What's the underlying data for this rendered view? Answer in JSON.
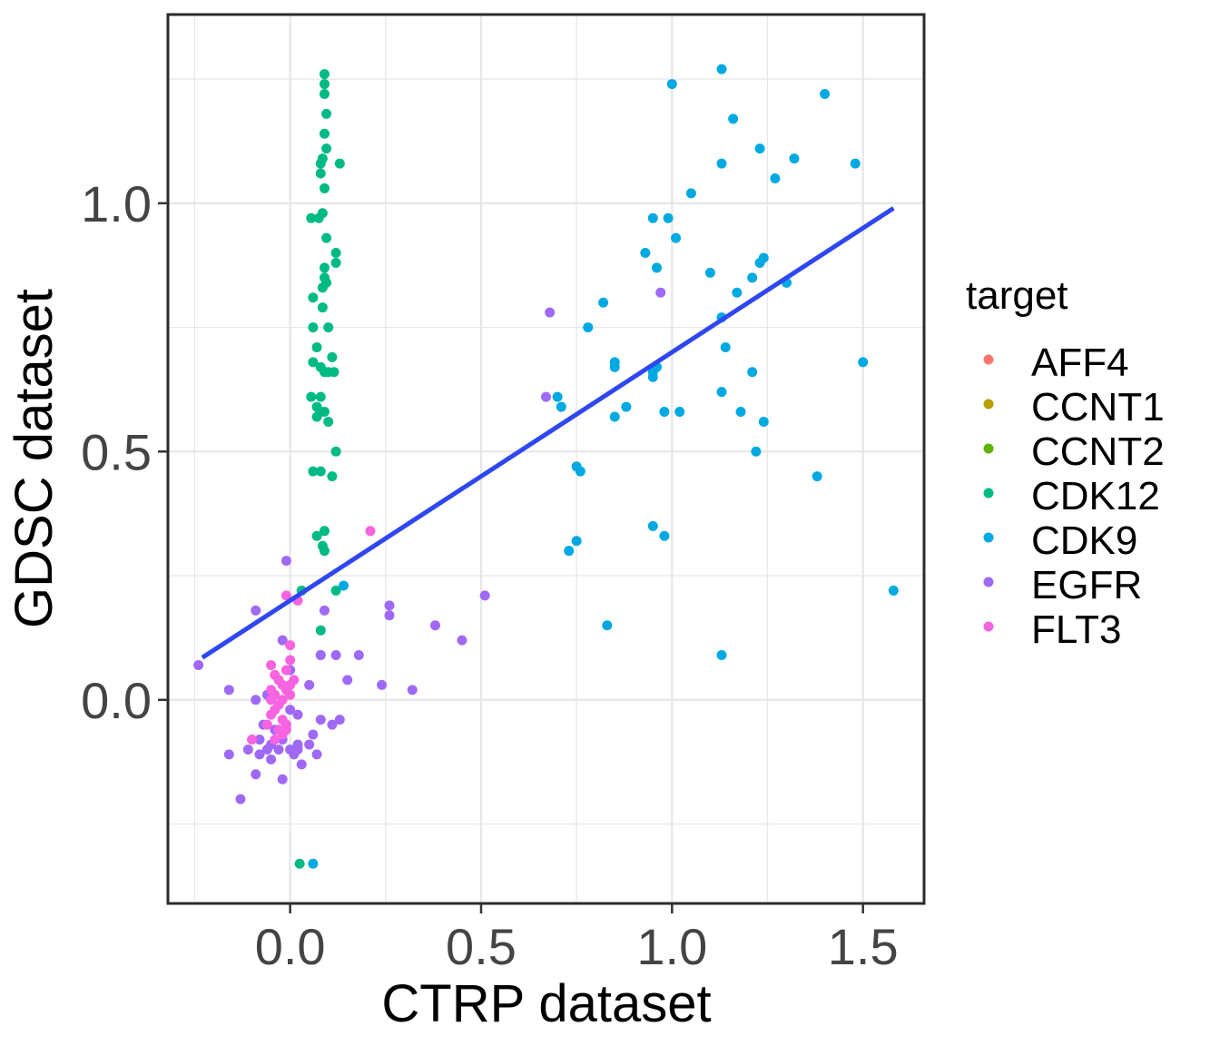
{
  "chart_data": {
    "type": "scatter",
    "xlabel": "CTRP dataset",
    "ylabel": "GDSC dataset",
    "xlim": [
      -0.32,
      1.66
    ],
    "ylim": [
      -0.41,
      1.38
    ],
    "x_ticks": [
      0.0,
      0.5,
      1.0,
      1.5
    ],
    "x_tick_labels": [
      "0.0",
      "0.5",
      "1.0",
      "1.5"
    ],
    "y_ticks": [
      0.0,
      0.5,
      1.0
    ],
    "y_tick_labels": [
      "0.0",
      "0.5",
      "1.0"
    ],
    "grid": true,
    "legend_position": "right",
    "legend_title": "target",
    "trend_line": {
      "color": "#2E47F0",
      "x": [
        -0.23,
        1.58
      ],
      "y": [
        0.085,
        0.99
      ]
    },
    "series": [
      {
        "name": "AFF4",
        "color": "#F8766D",
        "points": []
      },
      {
        "name": "CCNT1",
        "color": "#B79F00",
        "points": []
      },
      {
        "name": "CCNT2",
        "color": "#5FB300",
        "points": []
      },
      {
        "name": "CDK12",
        "color": "#00BA86",
        "points": [
          [
            0.09,
            1.26
          ],
          [
            0.09,
            1.24
          ],
          [
            0.09,
            1.22
          ],
          [
            0.095,
            1.18
          ],
          [
            0.09,
            1.14
          ],
          [
            0.095,
            1.11
          ],
          [
            0.085,
            1.09
          ],
          [
            0.08,
            1.08
          ],
          [
            0.13,
            1.08
          ],
          [
            0.08,
            1.06
          ],
          [
            0.09,
            1.03
          ],
          [
            0.085,
            0.98
          ],
          [
            0.055,
            0.97
          ],
          [
            0.075,
            0.97
          ],
          [
            0.095,
            0.93
          ],
          [
            0.12,
            0.9
          ],
          [
            0.12,
            0.88
          ],
          [
            0.09,
            0.87
          ],
          [
            0.09,
            0.85
          ],
          [
            0.095,
            0.84
          ],
          [
            0.085,
            0.83
          ],
          [
            0.06,
            0.81
          ],
          [
            0.085,
            0.79
          ],
          [
            0.1,
            0.75
          ],
          [
            0.06,
            0.75
          ],
          [
            0.07,
            0.71
          ],
          [
            0.11,
            0.69
          ],
          [
            0.06,
            0.68
          ],
          [
            0.08,
            0.67
          ],
          [
            0.09,
            0.66
          ],
          [
            0.1,
            0.66
          ],
          [
            0.115,
            0.66
          ],
          [
            0.055,
            0.61
          ],
          [
            0.08,
            0.61
          ],
          [
            0.07,
            0.59
          ],
          [
            0.08,
            0.58
          ],
          [
            0.09,
            0.58
          ],
          [
            0.07,
            0.57
          ],
          [
            0.1,
            0.56
          ],
          [
            0.12,
            0.5
          ],
          [
            0.06,
            0.46
          ],
          [
            0.08,
            0.46
          ],
          [
            0.11,
            0.45
          ],
          [
            0.09,
            0.34
          ],
          [
            0.07,
            0.33
          ],
          [
            0.085,
            0.31
          ],
          [
            0.09,
            0.3
          ],
          [
            0.03,
            0.22
          ],
          [
            0.12,
            0.22
          ],
          [
            0.08,
            0.14
          ],
          [
            0.08,
            0.09
          ],
          [
            0.025,
            -0.33
          ]
        ]
      },
      {
        "name": "CDK9",
        "color": "#00A9E2",
        "points": [
          [
            1.13,
            1.27
          ],
          [
            1.0,
            1.24
          ],
          [
            1.4,
            1.22
          ],
          [
            1.16,
            1.17
          ],
          [
            1.23,
            1.11
          ],
          [
            1.13,
            1.08
          ],
          [
            1.32,
            1.09
          ],
          [
            1.48,
            1.08
          ],
          [
            1.27,
            1.05
          ],
          [
            1.05,
            1.02
          ],
          [
            0.95,
            0.97
          ],
          [
            0.99,
            0.97
          ],
          [
            1.01,
            0.93
          ],
          [
            0.93,
            0.9
          ],
          [
            1.24,
            0.89
          ],
          [
            1.23,
            0.88
          ],
          [
            0.96,
            0.87
          ],
          [
            1.1,
            0.86
          ],
          [
            1.21,
            0.85
          ],
          [
            1.3,
            0.84
          ],
          [
            1.17,
            0.82
          ],
          [
            0.82,
            0.8
          ],
          [
            1.13,
            0.77
          ],
          [
            0.78,
            0.75
          ],
          [
            1.14,
            0.71
          ],
          [
            0.85,
            0.68
          ],
          [
            0.85,
            0.67
          ],
          [
            1.5,
            0.68
          ],
          [
            0.96,
            0.67
          ],
          [
            0.95,
            0.66
          ],
          [
            0.95,
            0.65
          ],
          [
            1.21,
            0.66
          ],
          [
            0.7,
            0.61
          ],
          [
            1.13,
            0.62
          ],
          [
            0.71,
            0.59
          ],
          [
            0.88,
            0.59
          ],
          [
            0.98,
            0.58
          ],
          [
            1.02,
            0.58
          ],
          [
            1.18,
            0.58
          ],
          [
            0.85,
            0.57
          ],
          [
            1.24,
            0.56
          ],
          [
            1.22,
            0.5
          ],
          [
            0.75,
            0.47
          ],
          [
            0.76,
            0.46
          ],
          [
            1.38,
            0.45
          ],
          [
            0.95,
            0.35
          ],
          [
            0.98,
            0.33
          ],
          [
            0.75,
            0.32
          ],
          [
            0.73,
            0.3
          ],
          [
            0.14,
            0.23
          ],
          [
            1.58,
            0.22
          ],
          [
            0.83,
            0.15
          ],
          [
            1.13,
            0.09
          ],
          [
            0.06,
            -0.33
          ]
        ]
      },
      {
        "name": "EGFR",
        "color": "#9F69F6",
        "points": [
          [
            0.97,
            0.82
          ],
          [
            0.68,
            0.78
          ],
          [
            0.67,
            0.61
          ],
          [
            -0.01,
            0.28
          ],
          [
            0.51,
            0.21
          ],
          [
            0.26,
            0.19
          ],
          [
            -0.09,
            0.18
          ],
          [
            0.26,
            0.17
          ],
          [
            0.09,
            0.18
          ],
          [
            0.38,
            0.15
          ],
          [
            0.45,
            0.12
          ],
          [
            -0.02,
            0.12
          ],
          [
            0.08,
            0.09
          ],
          [
            0.12,
            0.09
          ],
          [
            0.18,
            0.09
          ],
          [
            -0.24,
            0.07
          ],
          [
            0.0,
            0.06
          ],
          [
            0.24,
            0.03
          ],
          [
            0.15,
            0.04
          ],
          [
            -0.16,
            0.02
          ],
          [
            0.32,
            0.02
          ],
          [
            0.05,
            0.03
          ],
          [
            -0.06,
            0.01
          ],
          [
            -0.09,
            0.0
          ],
          [
            -0.03,
            -0.01
          ],
          [
            0.0,
            -0.02
          ],
          [
            0.02,
            -0.03
          ],
          [
            0.08,
            -0.04
          ],
          [
            0.13,
            -0.04
          ],
          [
            -0.07,
            -0.05
          ],
          [
            0.11,
            -0.05
          ],
          [
            -0.04,
            -0.06
          ],
          [
            -0.08,
            -0.08
          ],
          [
            0.06,
            -0.07
          ],
          [
            -0.02,
            -0.08
          ],
          [
            -0.05,
            -0.09
          ],
          [
            0.02,
            -0.09
          ],
          [
            0.05,
            -0.09
          ],
          [
            -0.03,
            -0.1
          ],
          [
            0.0,
            -0.1
          ],
          [
            -0.06,
            -0.1
          ],
          [
            0.02,
            -0.1
          ],
          [
            -0.11,
            -0.1
          ],
          [
            0.01,
            -0.11
          ],
          [
            -0.08,
            -0.11
          ],
          [
            -0.16,
            -0.11
          ],
          [
            0.07,
            -0.11
          ],
          [
            -0.05,
            -0.12
          ],
          [
            0.03,
            -0.13
          ],
          [
            -0.09,
            -0.15
          ],
          [
            -0.02,
            -0.16
          ],
          [
            -0.13,
            -0.2
          ]
        ]
      },
      {
        "name": "FLT3",
        "color": "#F763E0",
        "points": [
          [
            0.21,
            0.34
          ],
          [
            -0.01,
            0.21
          ],
          [
            0.02,
            0.2
          ],
          [
            0.0,
            0.11
          ],
          [
            -0.05,
            0.07
          ],
          [
            0.0,
            0.08
          ],
          [
            -0.01,
            0.06
          ],
          [
            -0.04,
            0.05
          ],
          [
            0.01,
            0.04
          ],
          [
            -0.03,
            0.04
          ],
          [
            -0.02,
            0.03
          ],
          [
            0.0,
            0.03
          ],
          [
            -0.05,
            0.02
          ],
          [
            -0.01,
            0.02
          ],
          [
            -0.04,
            0.01
          ],
          [
            0.0,
            0.01
          ],
          [
            -0.05,
            0.0
          ],
          [
            -0.02,
            0.0
          ],
          [
            -0.03,
            -0.01
          ],
          [
            -0.04,
            -0.02
          ],
          [
            -0.05,
            -0.03
          ],
          [
            -0.02,
            -0.04
          ],
          [
            -0.01,
            -0.05
          ],
          [
            -0.06,
            -0.05
          ],
          [
            -0.03,
            -0.06
          ],
          [
            -0.01,
            -0.06
          ],
          [
            -0.02,
            -0.07
          ],
          [
            -0.04,
            -0.08
          ],
          [
            -0.1,
            -0.08
          ]
        ]
      }
    ]
  }
}
